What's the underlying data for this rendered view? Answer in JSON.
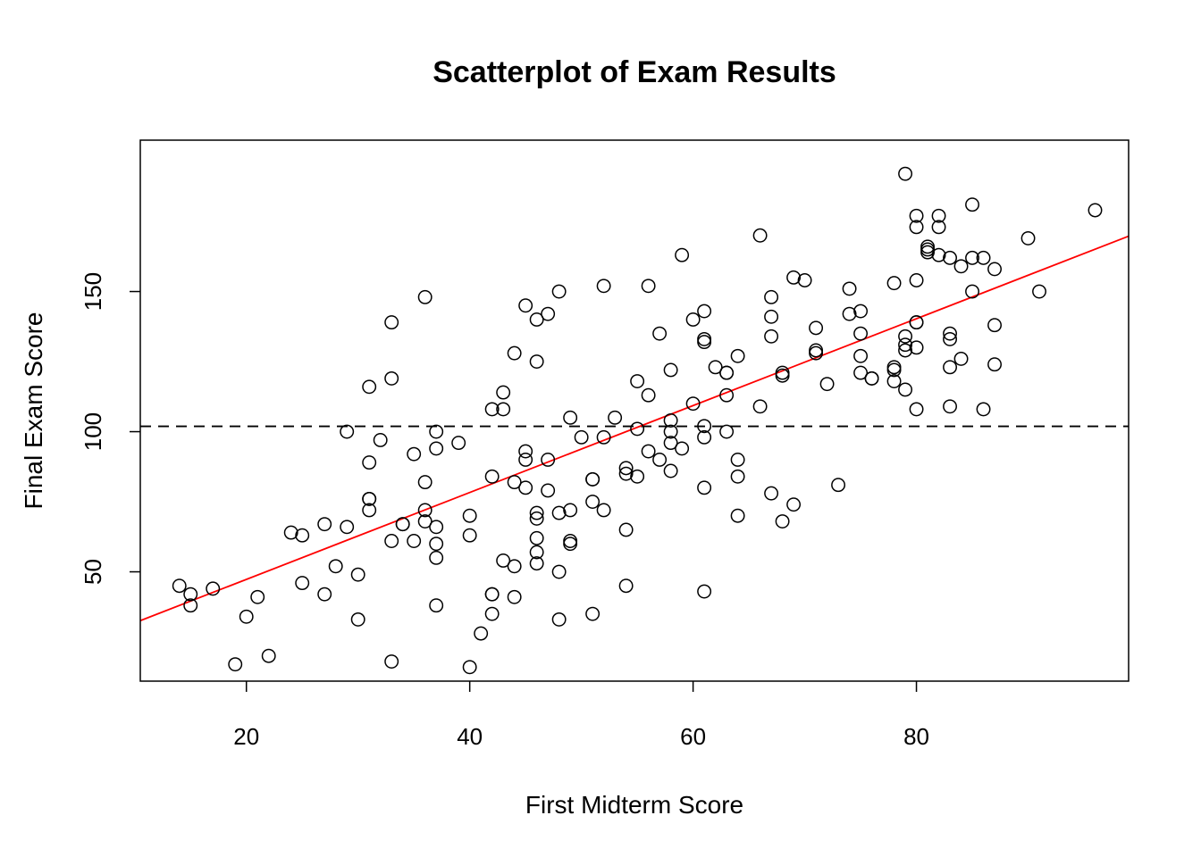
{
  "chart_data": {
    "type": "scatter",
    "title": "Scatterplot of Exam Results",
    "xlabel": "First Midterm Score",
    "ylabel": "Final Exam Score",
    "xlim": [
      10.5,
      99
    ],
    "ylim": [
      11,
      204
    ],
    "x_ticks": [
      20,
      40,
      60,
      80
    ],
    "y_ticks": [
      50,
      100,
      150
    ],
    "grid": false,
    "legend": "none",
    "colors": {
      "points": "#000000",
      "regression_line": "#ff0000",
      "mean_line": "#000000"
    },
    "regression_line": {
      "intercept": 16.3,
      "slope": 1.55,
      "style": "solid",
      "color": "#ff0000"
    },
    "mean_line": {
      "y": 101.9,
      "style": "dashed",
      "color": "#000000"
    },
    "points": [
      [
        14,
        45
      ],
      [
        15,
        42
      ],
      [
        15,
        38
      ],
      [
        17,
        44
      ],
      [
        19,
        17
      ],
      [
        20,
        34
      ],
      [
        21,
        41
      ],
      [
        22,
        20
      ],
      [
        24,
        64
      ],
      [
        25,
        63
      ],
      [
        25,
        46
      ],
      [
        27,
        67
      ],
      [
        27,
        42
      ],
      [
        28,
        52
      ],
      [
        29,
        100
      ],
      [
        29,
        66
      ],
      [
        30,
        49
      ],
      [
        30,
        33
      ],
      [
        31,
        116
      ],
      [
        31,
        89
      ],
      [
        31,
        76
      ],
      [
        31,
        76
      ],
      [
        31,
        72
      ],
      [
        32,
        97
      ],
      [
        33,
        139
      ],
      [
        33,
        119
      ],
      [
        33,
        61
      ],
      [
        33,
        18
      ],
      [
        34,
        67
      ],
      [
        34,
        67
      ],
      [
        35,
        92
      ],
      [
        35,
        61
      ],
      [
        36,
        148
      ],
      [
        36,
        82
      ],
      [
        36,
        72
      ],
      [
        36,
        68
      ],
      [
        37,
        100
      ],
      [
        37,
        94
      ],
      [
        37,
        66
      ],
      [
        37,
        60
      ],
      [
        37,
        55
      ],
      [
        37,
        38
      ],
      [
        39,
        96
      ],
      [
        40,
        70
      ],
      [
        40,
        63
      ],
      [
        40,
        16
      ],
      [
        41,
        28
      ],
      [
        42,
        108
      ],
      [
        42,
        84
      ],
      [
        42,
        42
      ],
      [
        42,
        42
      ],
      [
        42,
        35
      ],
      [
        43,
        114
      ],
      [
        43,
        108
      ],
      [
        43,
        54
      ],
      [
        44,
        128
      ],
      [
        44,
        82
      ],
      [
        44,
        52
      ],
      [
        44,
        41
      ],
      [
        45,
        145
      ],
      [
        45,
        93
      ],
      [
        45,
        90
      ],
      [
        45,
        80
      ],
      [
        46,
        140
      ],
      [
        46,
        125
      ],
      [
        46,
        71
      ],
      [
        46,
        69
      ],
      [
        46,
        62
      ],
      [
        46,
        57
      ],
      [
        46,
        53
      ],
      [
        47,
        142
      ],
      [
        47,
        90
      ],
      [
        47,
        79
      ],
      [
        48,
        150
      ],
      [
        48,
        71
      ],
      [
        48,
        50
      ],
      [
        48,
        33
      ],
      [
        49,
        105
      ],
      [
        49,
        72
      ],
      [
        49,
        61
      ],
      [
        49,
        60
      ],
      [
        50,
        98
      ],
      [
        51,
        83
      ],
      [
        51,
        83
      ],
      [
        51,
        75
      ],
      [
        51,
        35
      ],
      [
        52,
        152
      ],
      [
        52,
        98
      ],
      [
        52,
        72
      ],
      [
        53,
        105
      ],
      [
        54,
        87
      ],
      [
        54,
        85
      ],
      [
        54,
        65
      ],
      [
        54,
        45
      ],
      [
        55,
        118
      ],
      [
        55,
        101
      ],
      [
        55,
        84
      ],
      [
        56,
        152
      ],
      [
        56,
        113
      ],
      [
        56,
        93
      ],
      [
        57,
        135
      ],
      [
        57,
        90
      ],
      [
        58,
        122
      ],
      [
        58,
        104
      ],
      [
        58,
        100
      ],
      [
        58,
        96
      ],
      [
        58,
        86
      ],
      [
        59,
        163
      ],
      [
        59,
        94
      ],
      [
        60,
        140
      ],
      [
        60,
        110
      ],
      [
        61,
        143
      ],
      [
        61,
        133
      ],
      [
        61,
        132
      ],
      [
        61,
        102
      ],
      [
        61,
        98
      ],
      [
        61,
        80
      ],
      [
        61,
        43
      ],
      [
        62,
        123
      ],
      [
        63,
        121
      ],
      [
        63,
        121
      ],
      [
        63,
        113
      ],
      [
        63,
        100
      ],
      [
        64,
        127
      ],
      [
        64,
        90
      ],
      [
        64,
        84
      ],
      [
        64,
        70
      ],
      [
        66,
        170
      ],
      [
        66,
        109
      ],
      [
        67,
        148
      ],
      [
        67,
        141
      ],
      [
        67,
        134
      ],
      [
        67,
        78
      ],
      [
        68,
        121
      ],
      [
        68,
        120
      ],
      [
        68,
        68
      ],
      [
        69,
        155
      ],
      [
        69,
        74
      ],
      [
        70,
        154
      ],
      [
        71,
        137
      ],
      [
        71,
        129
      ],
      [
        71,
        128
      ],
      [
        72,
        117
      ],
      [
        73,
        81
      ],
      [
        74,
        151
      ],
      [
        74,
        142
      ],
      [
        75,
        143
      ],
      [
        75,
        135
      ],
      [
        75,
        127
      ],
      [
        75,
        121
      ],
      [
        76,
        119
      ],
      [
        76,
        119
      ],
      [
        78,
        153
      ],
      [
        78,
        123
      ],
      [
        78,
        122
      ],
      [
        78,
        118
      ],
      [
        79,
        192
      ],
      [
        79,
        134
      ],
      [
        79,
        131
      ],
      [
        79,
        129
      ],
      [
        79,
        115
      ],
      [
        80,
        177
      ],
      [
        80,
        173
      ],
      [
        80,
        154
      ],
      [
        80,
        139
      ],
      [
        80,
        139
      ],
      [
        80,
        130
      ],
      [
        80,
        108
      ],
      [
        81,
        166
      ],
      [
        81,
        165
      ],
      [
        81,
        164
      ],
      [
        82,
        177
      ],
      [
        82,
        173
      ],
      [
        82,
        163
      ],
      [
        83,
        162
      ],
      [
        83,
        135
      ],
      [
        83,
        133
      ],
      [
        83,
        123
      ],
      [
        83,
        109
      ],
      [
        84,
        159
      ],
      [
        84,
        126
      ],
      [
        85,
        181
      ],
      [
        85,
        162
      ],
      [
        85,
        150
      ],
      [
        86,
        162
      ],
      [
        86,
        108
      ],
      [
        87,
        158
      ],
      [
        87,
        138
      ],
      [
        87,
        124
      ],
      [
        90,
        169
      ],
      [
        91,
        150
      ],
      [
        96,
        179
      ]
    ]
  }
}
